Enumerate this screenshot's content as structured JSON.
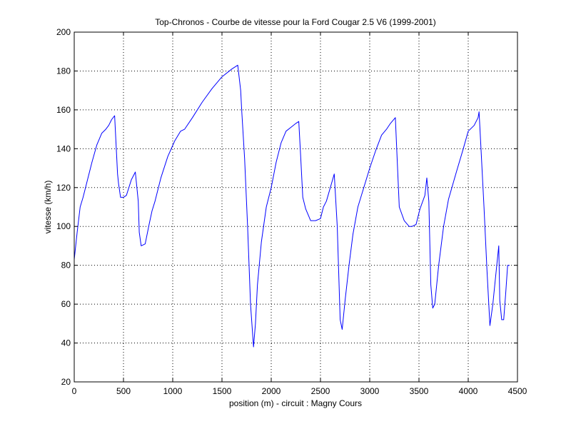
{
  "chart_data": {
    "type": "line",
    "title": "Top-Chronos - Courbe de vitesse pour la Ford Cougar 2.5 V6 (1999-2001)",
    "xlabel": "position (m) - circuit : Magny Cours",
    "ylabel": "vitesse (km/h)",
    "xlim": [
      0,
      4500
    ],
    "ylim": [
      20,
      200
    ],
    "xticks": [
      0,
      500,
      1000,
      1500,
      2000,
      2500,
      3000,
      3500,
      4000,
      4500
    ],
    "yticks": [
      20,
      40,
      60,
      80,
      100,
      120,
      140,
      160,
      180,
      200
    ],
    "grid": true,
    "line_color": "#0000ff",
    "series": [
      {
        "x": [
          0,
          30,
          60,
          90,
          130,
          180,
          230,
          280,
          320,
          350,
          380,
          410,
          440,
          450,
          470,
          500,
          530,
          580,
          620,
          650,
          660,
          680,
          720,
          760,
          790,
          820,
          880,
          950,
          1020,
          1080,
          1120,
          1200,
          1300,
          1400,
          1500,
          1600,
          1660,
          1690,
          1700,
          1730,
          1760,
          1790,
          1820,
          1840,
          1860,
          1900,
          1950,
          2000,
          2050,
          2100,
          2150,
          2200,
          2250,
          2280,
          2300,
          2320,
          2350,
          2400,
          2450,
          2500,
          2530,
          2560,
          2600,
          2640,
          2670,
          2700,
          2720,
          2750,
          2790,
          2830,
          2880,
          2940,
          3000,
          3060,
          3120,
          3170,
          3210,
          3260,
          3300,
          3350,
          3400,
          3430,
          3470,
          3510,
          3560,
          3580,
          3600,
          3620,
          3640,
          3660,
          3700,
          3750,
          3800,
          3880,
          3950,
          4000,
          4060,
          4100,
          4110,
          4130,
          4160,
          4190,
          4220,
          4250,
          4280,
          4310,
          4320,
          4340,
          4360,
          4380,
          4400,
          4420
        ],
        "y": [
          83,
          97,
          110,
          115,
          123,
          133,
          142,
          148,
          150,
          152,
          155,
          157,
          127,
          122,
          115,
          115,
          116,
          124,
          128,
          113,
          97,
          90,
          91,
          101,
          108,
          113,
          125,
          136,
          144,
          149,
          150,
          156,
          164,
          171,
          177,
          181,
          183,
          170,
          160,
          135,
          100,
          60,
          38,
          50,
          70,
          92,
          110,
          120,
          133,
          143,
          149,
          151,
          153,
          154,
          135,
          115,
          109,
          103,
          103,
          104,
          110,
          113,
          120,
          127,
          100,
          52,
          47,
          62,
          80,
          96,
          110,
          120,
          130,
          139,
          147,
          150,
          153,
          156,
          110,
          103,
          100,
          100,
          101,
          109,
          116,
          125,
          113,
          70,
          58,
          60,
          80,
          100,
          114,
          128,
          140,
          149,
          152,
          156,
          159,
          140,
          110,
          78,
          49,
          60,
          75,
          90,
          62,
          52,
          52,
          65,
          80,
          80
        ]
      }
    ]
  }
}
